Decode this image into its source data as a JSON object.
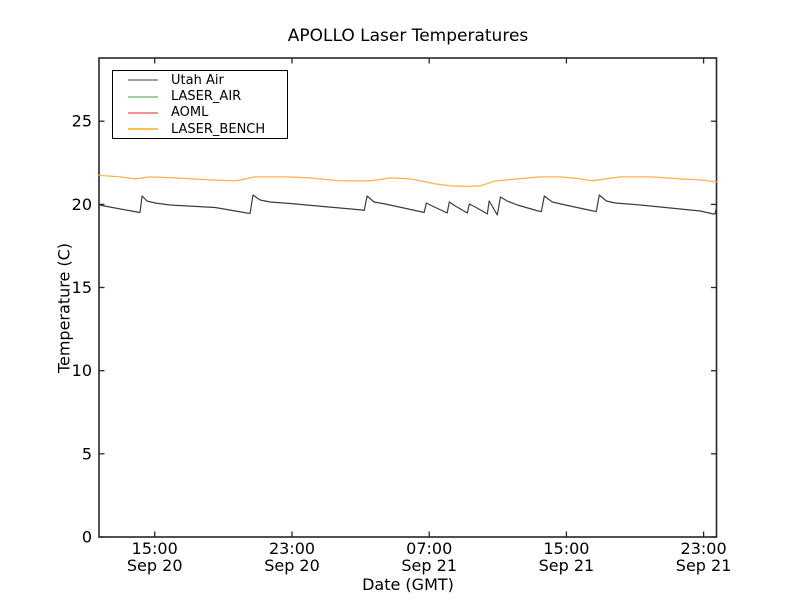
{
  "chart_data": {
    "type": "line",
    "title": "APOLLO Laser Temperatures",
    "xlabel": "Date (GMT)",
    "ylabel": "Temperature (C)",
    "grid": false,
    "legend_position": "upper left",
    "ylim": [
      0,
      28.8
    ],
    "yticks": [
      0,
      5,
      10,
      15,
      20,
      25
    ],
    "x_domain_hours": [
      0,
      36
    ],
    "x_domain_note": "hours across plot; left edge ~11:45 Sep 20 GMT, right edge ~23:45 Sep 21 GMT",
    "xticks": [
      {
        "hour": 3.25,
        "time": "15:00",
        "date": "Sep 20"
      },
      {
        "hour": 11.25,
        "time": "23:00",
        "date": "Sep 20"
      },
      {
        "hour": 19.25,
        "time": "07:00",
        "date": "Sep 21"
      },
      {
        "hour": 27.25,
        "time": "15:00",
        "date": "Sep 21"
      },
      {
        "hour": 35.25,
        "time": "23:00",
        "date": "Sep 21"
      }
    ],
    "colors": {
      "axis": "#262626",
      "background": "#ffffff",
      "legend_border": "#000000"
    },
    "series": [
      {
        "name": "Utah Air",
        "line_color": "#3d3d3d",
        "legend_color": "#a0a0a0",
        "visible": true,
        "points": [
          [
            0.0,
            19.96
          ],
          [
            2.22,
            19.54
          ],
          [
            2.39,
            19.51
          ],
          [
            2.51,
            20.5
          ],
          [
            2.8,
            20.2
          ],
          [
            3.27,
            20.08
          ],
          [
            4.14,
            19.96
          ],
          [
            6.77,
            19.81
          ],
          [
            8.63,
            19.48
          ],
          [
            8.81,
            19.46
          ],
          [
            8.98,
            20.56
          ],
          [
            9.39,
            20.26
          ],
          [
            9.98,
            20.14
          ],
          [
            11.14,
            20.05
          ],
          [
            15.34,
            19.66
          ],
          [
            15.46,
            19.63
          ],
          [
            15.63,
            20.5
          ],
          [
            16.04,
            20.14
          ],
          [
            16.69,
            20.02
          ],
          [
            18.84,
            19.54
          ],
          [
            18.96,
            19.51
          ],
          [
            19.08,
            20.08
          ],
          [
            19.43,
            19.9
          ],
          [
            20.3,
            19.48
          ],
          [
            20.42,
            20.14
          ],
          [
            20.77,
            19.9
          ],
          [
            21.47,
            19.48
          ],
          [
            21.59,
            20.02
          ],
          [
            21.94,
            19.84
          ],
          [
            22.64,
            19.42
          ],
          [
            22.75,
            20.2
          ],
          [
            22.99,
            19.78
          ],
          [
            23.22,
            19.36
          ],
          [
            23.4,
            20.44
          ],
          [
            23.8,
            20.2
          ],
          [
            24.39,
            19.96
          ],
          [
            25.61,
            19.6
          ],
          [
            25.79,
            19.57
          ],
          [
            25.96,
            20.5
          ],
          [
            26.43,
            20.14
          ],
          [
            27.19,
            19.96
          ],
          [
            28.82,
            19.6
          ],
          [
            28.99,
            19.57
          ],
          [
            29.17,
            20.56
          ],
          [
            29.58,
            20.2
          ],
          [
            30.1,
            20.08
          ],
          [
            31.56,
            19.96
          ],
          [
            33.31,
            19.78
          ],
          [
            35.06,
            19.6
          ],
          [
            35.82,
            19.42
          ],
          [
            35.91,
            19.42
          ],
          [
            36.0,
            19.84
          ]
        ]
      },
      {
        "name": "LASER_AIR",
        "line_color": "#9cd09c",
        "legend_color": "#9cd09c",
        "visible": false,
        "points": []
      },
      {
        "name": "AOML",
        "line_color": "#f49090",
        "legend_color": "#f49090",
        "visible": false,
        "points": []
      },
      {
        "name": "LASER_BENCH",
        "line_color": "#ffb04a",
        "legend_color": "#ffc155",
        "visible": true,
        "points": [
          [
            0.0,
            21.75
          ],
          [
            1.23,
            21.65
          ],
          [
            2.1,
            21.53
          ],
          [
            2.98,
            21.65
          ],
          [
            4.43,
            21.59
          ],
          [
            6.48,
            21.47
          ],
          [
            7.93,
            21.41
          ],
          [
            9.1,
            21.65
          ],
          [
            10.85,
            21.65
          ],
          [
            12.31,
            21.59
          ],
          [
            14.06,
            21.41
          ],
          [
            15.81,
            21.41
          ],
          [
            16.98,
            21.59
          ],
          [
            18.14,
            21.53
          ],
          [
            19.6,
            21.23
          ],
          [
            20.48,
            21.11
          ],
          [
            21.35,
            21.08
          ],
          [
            22.23,
            21.11
          ],
          [
            23.1,
            21.41
          ],
          [
            24.39,
            21.53
          ],
          [
            25.73,
            21.65
          ],
          [
            26.9,
            21.65
          ],
          [
            28.06,
            21.53
          ],
          [
            28.76,
            21.41
          ],
          [
            29.52,
            21.53
          ],
          [
            30.39,
            21.65
          ],
          [
            32.14,
            21.65
          ],
          [
            33.89,
            21.53
          ],
          [
            35.06,
            21.47
          ],
          [
            36.0,
            21.35
          ]
        ]
      }
    ]
  }
}
